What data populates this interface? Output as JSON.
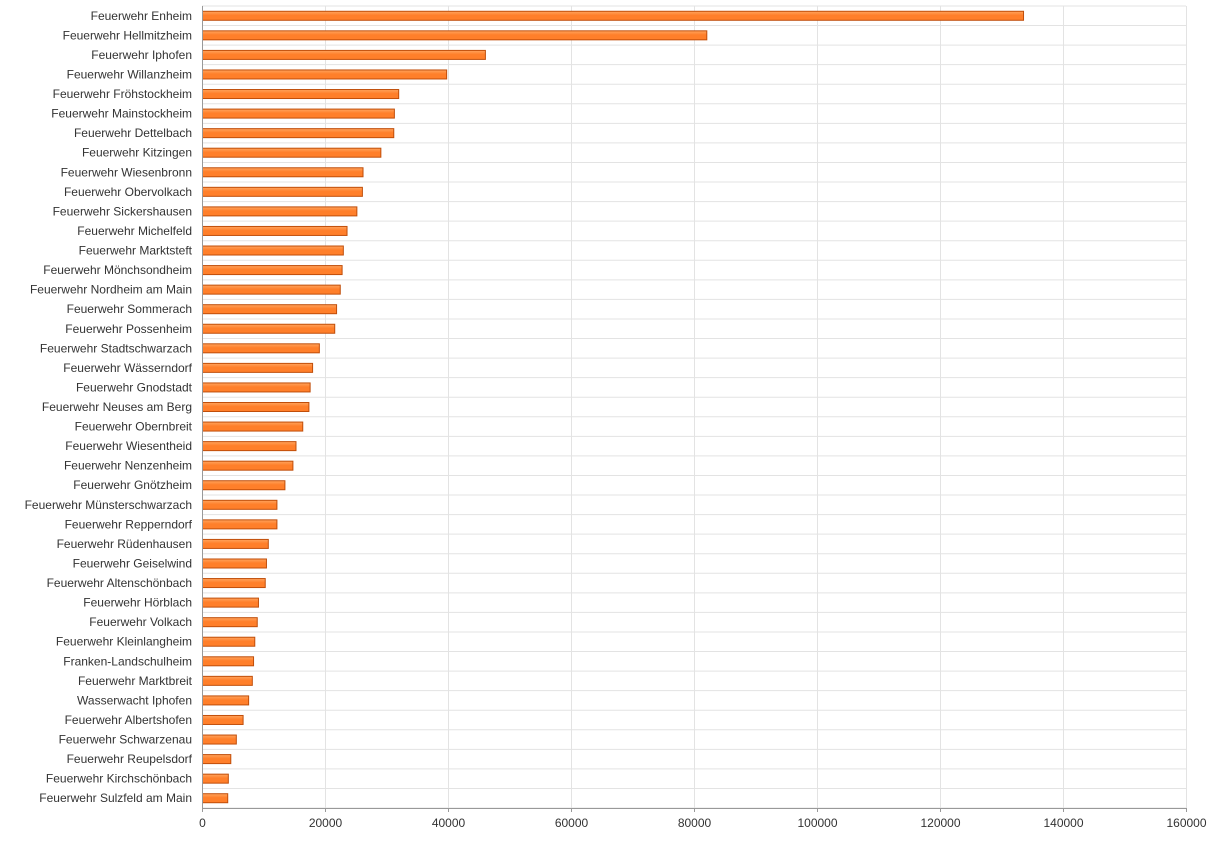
{
  "chart_data": {
    "type": "bar",
    "orientation": "horizontal",
    "title": "",
    "xlabel": "",
    "ylabel": "",
    "xlim": [
      0,
      160000
    ],
    "x_ticks": [
      "0",
      "20000",
      "40000",
      "60000",
      "80000",
      "100000",
      "120000",
      "140000",
      "160000"
    ],
    "grid": true,
    "legend": "none",
    "colors": {
      "bar_fill": "#ff7f2a",
      "bar_highlight": "#ffa45e",
      "bar_stroke": "#c04e0a",
      "grid": "#e3e3e3",
      "axis": "#999999"
    },
    "categories": [
      "Feuerwehr Enheim",
      "Feuerwehr Hellmitzheim",
      "Feuerwehr Iphofen",
      "Feuerwehr Willanzheim",
      "Feuerwehr Fröhstockheim",
      "Feuerwehr Mainstockheim",
      "Feuerwehr Dettelbach",
      "Feuerwehr Kitzingen",
      "Feuerwehr Wiesenbronn",
      "Feuerwehr Obervolkach",
      "Feuerwehr Sickershausen",
      "Feuerwehr Michelfeld",
      "Feuerwehr Marktsteft",
      "Feuerwehr Mönchsondheim",
      "Feuerwehr Nordheim am Main",
      "Feuerwehr Sommerach",
      "Feuerwehr Possenheim",
      "Feuerwehr Stadtschwarzach",
      "Feuerwehr Wässerndorf",
      "Feuerwehr Gnodstadt",
      "Feuerwehr Neuses am Berg",
      "Feuerwehr Obernbreit",
      "Feuerwehr Wiesentheid",
      "Feuerwehr Nenzenheim",
      "Feuerwehr Gnötzheim",
      "Feuerwehr Münsterschwarzach",
      "Feuerwehr Repperndorf",
      "Feuerwehr Rüdenhausen",
      "Feuerwehr Geiselwind",
      "Feuerwehr Altenschönbach",
      "Feuerwehr Hörblach",
      "Feuerwehr Volkach",
      "Feuerwehr Kleinlangheim",
      "Franken-Landschulheim",
      "Feuerwehr Marktbreit",
      "Wasserwacht Iphofen",
      "Feuerwehr Albertshofen",
      "Feuerwehr Schwarzenau",
      "Feuerwehr Reupelsdorf",
      "Feuerwehr Kirchschönbach",
      "Feuerwehr Sulzfeld am Main"
    ],
    "values": [
      133500,
      82000,
      46000,
      39700,
      31900,
      31200,
      31100,
      29000,
      26100,
      26000,
      25100,
      23500,
      22900,
      22700,
      22400,
      21800,
      21500,
      19000,
      17900,
      17500,
      17300,
      16300,
      15200,
      14700,
      13400,
      12100,
      12100,
      10700,
      10400,
      10200,
      9100,
      8900,
      8500,
      8300,
      8100,
      7500,
      6600,
      5500,
      4600,
      4200,
      4100
    ]
  }
}
